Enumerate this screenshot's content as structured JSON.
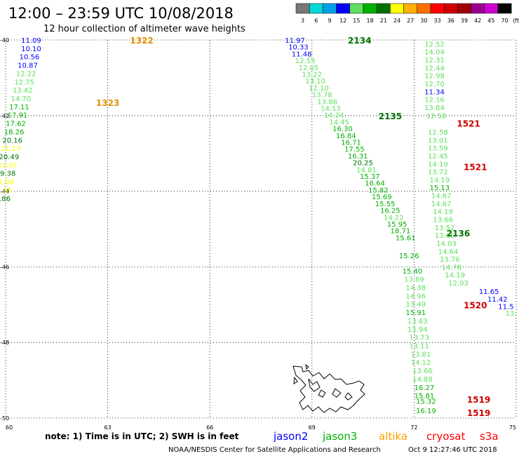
{
  "header": {
    "title": "12:00 – 23:59 UTC 10/08/2018",
    "subtitle": "12 hour collection of altimeter wave heights"
  },
  "legend": {
    "bins": [
      {
        "label": "3",
        "color": "#777777"
      },
      {
        "label": "6",
        "color": "#00d8d8"
      },
      {
        "label": "9",
        "color": "#00a0e8"
      },
      {
        "label": "12",
        "color": "#0000ff"
      },
      {
        "label": "15",
        "color": "#5ee05e"
      },
      {
        "label": "18",
        "color": "#00b000"
      },
      {
        "label": "21",
        "color": "#007000"
      },
      {
        "label": "24",
        "color": "#ffff00"
      },
      {
        "label": "27",
        "color": "#ffb000"
      },
      {
        "label": "30",
        "color": "#ff7000"
      },
      {
        "label": "33",
        "color": "#ff0000"
      },
      {
        "label": "36",
        "color": "#d00000"
      },
      {
        "label": "39",
        "color": "#a00000"
      },
      {
        "label": "42",
        "color": "#9a0090"
      },
      {
        "label": "45",
        "color": "#d000d0"
      },
      {
        "label": "70",
        "color": "#000000"
      }
    ],
    "unit": "(ft)"
  },
  "axes": {
    "lat_labels": [
      "-40",
      "-42",
      "-44",
      "-46",
      "-48",
      "-50"
    ],
    "lon_labels": [
      "60",
      "63",
      "66",
      "69",
      "72",
      "75"
    ]
  },
  "passes": [
    {
      "label": "1322",
      "color": "#e09000",
      "lon": 64.0,
      "lat": -40.0
    },
    {
      "label": "1323",
      "color": "#e09000",
      "lon": 63.0,
      "lat": -41.65
    },
    {
      "label": "2134",
      "color": "#007000",
      "lon": 70.4,
      "lat": -40.0
    },
    {
      "label": "2135",
      "color": "#007000",
      "lon": 71.3,
      "lat": -42.0
    },
    {
      "label": "2136",
      "color": "#007000",
      "lon": 73.3,
      "lat": -45.1
    },
    {
      "label": "1521",
      "color": "#d00000",
      "lon": 73.6,
      "lat": -42.2
    },
    {
      "label": "1521",
      "color": "#d00000",
      "lon": 73.8,
      "lat": -43.35
    },
    {
      "label": "1520",
      "color": "#d00000",
      "lon": 73.8,
      "lat": -47.0
    },
    {
      "label": "1519",
      "color": "#d00000",
      "lon": 73.9,
      "lat": -49.5
    },
    {
      "label": "1519",
      "color": "#d00000",
      "lon": 73.9,
      "lat": -49.85
    }
  ],
  "observations": [
    {
      "v": "11.09",
      "c": "#0000ff",
      "lon": 60.75,
      "lat": -40.0
    },
    {
      "v": "10.10",
      "c": "#0000ff",
      "lon": 60.75,
      "lat": -40.22
    },
    {
      "v": "10.56",
      "c": "#0000ff",
      "lon": 60.7,
      "lat": -40.44
    },
    {
      "v": "10.87",
      "c": "#0000ff",
      "lon": 60.65,
      "lat": -40.66
    },
    {
      "v": "12.22",
      "c": "#5ee05e",
      "lon": 60.6,
      "lat": -40.88
    },
    {
      "v": "12.75",
      "c": "#5ee05e",
      "lon": 60.55,
      "lat": -41.1
    },
    {
      "v": "13.42",
      "c": "#5ee05e",
      "lon": 60.5,
      "lat": -41.32
    },
    {
      "v": "14.70",
      "c": "#5ee05e",
      "lon": 60.45,
      "lat": -41.54
    },
    {
      "v": "17.11",
      "c": "#00b000",
      "lon": 60.4,
      "lat": -41.76
    },
    {
      "v": "17.91",
      "c": "#00b000",
      "lon": 60.35,
      "lat": -41.98
    },
    {
      "v": "17.62",
      "c": "#00b000",
      "lon": 60.3,
      "lat": -42.2
    },
    {
      "v": "18.26",
      "c": "#00b000",
      "lon": 60.25,
      "lat": -42.42
    },
    {
      "v": "20.16",
      "c": "#007000",
      "lon": 60.2,
      "lat": -42.64
    },
    {
      "v": "21.13",
      "c": "#ffff00",
      "lon": 60.15,
      "lat": -42.86
    },
    {
      "v": "20.49",
      "c": "#007000",
      "lon": 60.1,
      "lat": -43.08
    },
    {
      "v": "21.07",
      "c": "#ffff00",
      "lon": 60.05,
      "lat": -43.3
    },
    {
      "v": "19.38",
      "c": "#007000",
      "lon": 60.0,
      "lat": -43.52
    },
    {
      "v": "21.08",
      "c": "#ffff00",
      "lon": 59.95,
      "lat": -43.74
    },
    {
      "v": "21.55",
      "c": "#ffff00",
      "lon": 59.9,
      "lat": -43.96
    },
    {
      "v": "19.86",
      "c": "#007000",
      "lon": 59.85,
      "lat": -44.18
    },
    {
      "v": "11.97",
      "c": "#0000ff",
      "lon": 68.5,
      "lat": -40.0
    },
    {
      "v": "10.33",
      "c": "#0000ff",
      "lon": 68.6,
      "lat": -40.18
    },
    {
      "v": "11.48",
      "c": "#0000ff",
      "lon": 68.7,
      "lat": -40.36
    },
    {
      "v": "12.53",
      "c": "#5ee05e",
      "lon": 68.8,
      "lat": -40.54
    },
    {
      "v": "12.05",
      "c": "#5ee05e",
      "lon": 68.9,
      "lat": -40.72
    },
    {
      "v": "13.22",
      "c": "#5ee05e",
      "lon": 69.0,
      "lat": -40.9
    },
    {
      "v": "13.10",
      "c": "#5ee05e",
      "lon": 69.1,
      "lat": -41.08
    },
    {
      "v": "12.10",
      "c": "#5ee05e",
      "lon": 69.2,
      "lat": -41.26
    },
    {
      "v": "13.78",
      "c": "#5ee05e",
      "lon": 69.3,
      "lat": -41.44
    },
    {
      "v": "13.86",
      "c": "#5ee05e",
      "lon": 69.45,
      "lat": -41.62
    },
    {
      "v": "14.13",
      "c": "#5ee05e",
      "lon": 69.55,
      "lat": -41.8
    },
    {
      "v": "14.24",
      "c": "#5ee05e",
      "lon": 69.65,
      "lat": -41.98
    },
    {
      "v": "14.45",
      "c": "#5ee05e",
      "lon": 69.8,
      "lat": -42.16
    },
    {
      "v": "16.30",
      "c": "#00b000",
      "lon": 69.9,
      "lat": -42.34
    },
    {
      "v": "16.84",
      "c": "#00b000",
      "lon": 70.0,
      "lat": -42.52
    },
    {
      "v": "16.71",
      "c": "#00b000",
      "lon": 70.15,
      "lat": -42.7
    },
    {
      "v": "17.55",
      "c": "#00b000",
      "lon": 70.25,
      "lat": -42.88
    },
    {
      "v": "16.31",
      "c": "#00b000",
      "lon": 70.35,
      "lat": -43.06
    },
    {
      "v": "20.25",
      "c": "#007000",
      "lon": 70.5,
      "lat": -43.24
    },
    {
      "v": "14.81",
      "c": "#5ee05e",
      "lon": 70.6,
      "lat": -43.42
    },
    {
      "v": "15.37",
      "c": "#00b000",
      "lon": 70.7,
      "lat": -43.6
    },
    {
      "v": "16.64",
      "c": "#00b000",
      "lon": 70.85,
      "lat": -43.78
    },
    {
      "v": "15.82",
      "c": "#00b000",
      "lon": 70.95,
      "lat": -43.96
    },
    {
      "v": "15.69",
      "c": "#00b000",
      "lon": 71.05,
      "lat": -44.14
    },
    {
      "v": "15.55",
      "c": "#00b000",
      "lon": 71.15,
      "lat": -44.32
    },
    {
      "v": "16.25",
      "c": "#00b000",
      "lon": 71.3,
      "lat": -44.5
    },
    {
      "v": "14.22",
      "c": "#5ee05e",
      "lon": 71.4,
      "lat": -44.68
    },
    {
      "v": "15.95",
      "c": "#00b000",
      "lon": 71.5,
      "lat": -44.86
    },
    {
      "v": "18.71",
      "c": "#00b000",
      "lon": 71.6,
      "lat": -45.04
    },
    {
      "v": "15.61",
      "c": "#00b000",
      "lon": 71.75,
      "lat": -45.22
    },
    {
      "v": "15.26",
      "c": "#00b000",
      "lon": 71.85,
      "lat": -45.7
    },
    {
      "v": "15.40",
      "c": "#00b000",
      "lon": 71.95,
      "lat": -46.1
    },
    {
      "v": "13.89",
      "c": "#5ee05e",
      "lon": 72.0,
      "lat": -46.32
    },
    {
      "v": "14.38",
      "c": "#5ee05e",
      "lon": 72.05,
      "lat": -46.54
    },
    {
      "v": "14.96",
      "c": "#5ee05e",
      "lon": 72.05,
      "lat": -46.76
    },
    {
      "v": "13.49",
      "c": "#5ee05e",
      "lon": 72.05,
      "lat": -46.98
    },
    {
      "v": "15.91",
      "c": "#00b000",
      "lon": 72.05,
      "lat": -47.2
    },
    {
      "v": "13.63",
      "c": "#5ee05e",
      "lon": 72.1,
      "lat": -47.42
    },
    {
      "v": "13.94",
      "c": "#5ee05e",
      "lon": 72.1,
      "lat": -47.64
    },
    {
      "v": "13.73",
      "c": "#5ee05e",
      "lon": 72.15,
      "lat": -47.86
    },
    {
      "v": "13.11",
      "c": "#5ee05e",
      "lon": 72.15,
      "lat": -48.08
    },
    {
      "v": "13.81",
      "c": "#5ee05e",
      "lon": 72.2,
      "lat": -48.3
    },
    {
      "v": "14.12",
      "c": "#5ee05e",
      "lon": 72.2,
      "lat": -48.52
    },
    {
      "v": "13.66",
      "c": "#5ee05e",
      "lon": 72.25,
      "lat": -48.74
    },
    {
      "v": "14.88",
      "c": "#5ee05e",
      "lon": 72.25,
      "lat": -48.96
    },
    {
      "v": "16.27",
      "c": "#00b000",
      "lon": 72.3,
      "lat": -49.18
    },
    {
      "v": "15.81",
      "c": "#00b000",
      "lon": 72.3,
      "lat": -49.4
    },
    {
      "v": "15.32",
      "c": "#00b000",
      "lon": 72.35,
      "lat": -49.55
    },
    {
      "v": "16.19",
      "c": "#00b000",
      "lon": 72.35,
      "lat": -49.8
    },
    {
      "v": "12.52",
      "c": "#5ee05e",
      "lon": 72.6,
      "lat": -40.1
    },
    {
      "v": "14.04",
      "c": "#5ee05e",
      "lon": 72.6,
      "lat": -40.31
    },
    {
      "v": "12.31",
      "c": "#5ee05e",
      "lon": 72.6,
      "lat": -40.52
    },
    {
      "v": "12.44",
      "c": "#5ee05e",
      "lon": 72.6,
      "lat": -40.73
    },
    {
      "v": "12.98",
      "c": "#5ee05e",
      "lon": 72.6,
      "lat": -40.94
    },
    {
      "v": "12.70",
      "c": "#5ee05e",
      "lon": 72.6,
      "lat": -41.15
    },
    {
      "v": "11.34",
      "c": "#0000ff",
      "lon": 72.6,
      "lat": -41.36
    },
    {
      "v": "12.16",
      "c": "#5ee05e",
      "lon": 72.6,
      "lat": -41.57
    },
    {
      "v": "13.84",
      "c": "#5ee05e",
      "lon": 72.6,
      "lat": -41.78
    },
    {
      "v": "12.58",
      "c": "#5ee05e",
      "lon": 72.65,
      "lat": -41.99
    },
    {
      "v": "12.58",
      "c": "#5ee05e",
      "lon": 72.7,
      "lat": -42.43
    },
    {
      "v": "13.01",
      "c": "#5ee05e",
      "lon": 72.7,
      "lat": -42.64
    },
    {
      "v": "13.59",
      "c": "#5ee05e",
      "lon": 72.7,
      "lat": -42.85
    },
    {
      "v": "12.45",
      "c": "#5ee05e",
      "lon": 72.7,
      "lat": -43.06
    },
    {
      "v": "14.19",
      "c": "#5ee05e",
      "lon": 72.7,
      "lat": -43.27
    },
    {
      "v": "13.72",
      "c": "#5ee05e",
      "lon": 72.7,
      "lat": -43.48
    },
    {
      "v": "14.19",
      "c": "#5ee05e",
      "lon": 72.75,
      "lat": -43.69
    },
    {
      "v": "15.13",
      "c": "#00b000",
      "lon": 72.75,
      "lat": -43.9
    },
    {
      "v": "14.67",
      "c": "#5ee05e",
      "lon": 72.8,
      "lat": -44.11
    },
    {
      "v": "14.67",
      "c": "#5ee05e",
      "lon": 72.8,
      "lat": -44.32
    },
    {
      "v": "14.19",
      "c": "#5ee05e",
      "lon": 72.85,
      "lat": -44.53
    },
    {
      "v": "13.66",
      "c": "#5ee05e",
      "lon": 72.85,
      "lat": -44.74
    },
    {
      "v": "13.52",
      "c": "#5ee05e",
      "lon": 72.9,
      "lat": -44.95
    },
    {
      "v": "13.66",
      "c": "#5ee05e",
      "lon": 72.9,
      "lat": -45.16
    },
    {
      "v": "14.03",
      "c": "#5ee05e",
      "lon": 72.95,
      "lat": -45.37
    },
    {
      "v": "14.64",
      "c": "#5ee05e",
      "lon": 73.0,
      "lat": -45.58
    },
    {
      "v": "13.76",
      "c": "#5ee05e",
      "lon": 73.05,
      "lat": -45.79
    },
    {
      "v": "14.78",
      "c": "#5ee05e",
      "lon": 73.1,
      "lat": -46.0
    },
    {
      "v": "14.19",
      "c": "#5ee05e",
      "lon": 73.2,
      "lat": -46.21
    },
    {
      "v": "12.93",
      "c": "#5ee05e",
      "lon": 73.3,
      "lat": -46.42
    },
    {
      "v": "11.65",
      "c": "#0000ff",
      "lon": 74.2,
      "lat": -46.64
    },
    {
      "v": "11.42",
      "c": "#0000ff",
      "lon": 74.45,
      "lat": -46.85
    },
    {
      "v": "11.5",
      "c": "#0000ff",
      "lon": 74.7,
      "lat": -47.04
    },
    {
      "v": "13.",
      "c": "#5ee05e",
      "lon": 74.85,
      "lat": -47.22
    }
  ],
  "island": {
    "name": "Kerguelen Islands"
  },
  "note": {
    "text": "note:  1) Time is in UTC;  2) SWH is in feet",
    "satellites": [
      {
        "name": "jason2",
        "color": "#0000ff"
      },
      {
        "name": "jason3",
        "color": "#00b000"
      },
      {
        "name": "altika",
        "color": "#ffa000"
      },
      {
        "name": "cryosat",
        "color": "#ff0000"
      },
      {
        "name": "s3a",
        "color": "#ff0000"
      }
    ]
  },
  "footer": {
    "credit": "NOAA/NESDIS Center for Satellite Applications and Research",
    "timestamp": "Oct  9 12:27:46 UTC 2018"
  }
}
